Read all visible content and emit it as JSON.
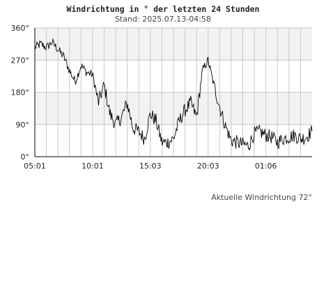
{
  "header": {
    "title": "Windrichtung in ° der letzten 24 Stunden",
    "subtitle": "Stand: 2025.07.13-04:58"
  },
  "footer": {
    "current_text": "Aktuelle Windrichtung 72°"
  },
  "colors": {
    "line": "#000000",
    "band": "#f2f2f2",
    "grid": "#c8c8c8"
  },
  "chart_data": {
    "type": "line",
    "title": "Windrichtung in ° der letzten 24 Stunden",
    "subtitle": "Stand: 2025.07.13-04:58",
    "ylim": [
      0,
      360
    ],
    "y_ticks": [
      "0°",
      "90°",
      "180°",
      "270°",
      "360°"
    ],
    "y_tick_values": [
      0,
      90,
      180,
      270,
      360
    ],
    "x_ticks": [
      "05:01",
      "10:01",
      "15:03",
      "20:03",
      "01:06"
    ],
    "x_tick_hours": [
      0,
      5,
      10,
      15,
      20
    ],
    "x_range_hours": [
      0,
      24
    ],
    "grid": true,
    "series": [
      {
        "x_hours": [
          0,
          0.5,
          1,
          1.5,
          2,
          2.5,
          3,
          3.5,
          4,
          4.5,
          5,
          5.5,
          6,
          6.5,
          7,
          7.5,
          8,
          8.5,
          9,
          9.5,
          10,
          10.5,
          11,
          11.5,
          12,
          12.5,
          13,
          13.5,
          14,
          14.5,
          15,
          15.5,
          16,
          16.5,
          17,
          17.5,
          18,
          18.5,
          19,
          19.5,
          20,
          20.5,
          21,
          21.5,
          22,
          22.5,
          23,
          23.5,
          24
        ],
        "values": [
          305,
          315,
          305,
          320,
          300,
          280,
          240,
          210,
          255,
          235,
          230,
          150,
          200,
          120,
          90,
          110,
          150,
          80,
          70,
          50,
          120,
          100,
          40,
          40,
          50,
          100,
          130,
          150,
          110,
          240,
          270,
          200,
          140,
          85,
          45,
          40,
          35,
          30,
          65,
          70,
          60,
          55,
          40,
          50,
          55,
          60,
          50,
          55,
          72
        ]
      }
    ]
  }
}
